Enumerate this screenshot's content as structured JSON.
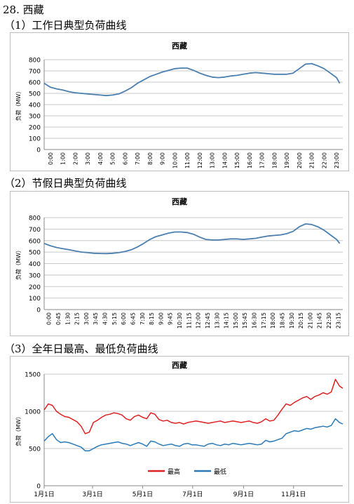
{
  "section_title": "28. 西藏",
  "charts": [
    {
      "heading": "（1）工作日典型负荷曲线",
      "chart_data": {
        "type": "line",
        "title": "西藏",
        "ylabel": "负荷（MW）",
        "xlabel": "",
        "ylim": [
          0,
          800
        ],
        "yticks": [
          0,
          100,
          200,
          300,
          400,
          500,
          600,
          700,
          800
        ],
        "grid": true,
        "categories": [
          "0:00",
          "1:00",
          "2:00",
          "3:00",
          "4:00",
          "5:00",
          "6:00",
          "7:00",
          "8:00",
          "9:00",
          "10:00",
          "11:00",
          "12:00",
          "13:00",
          "14:00",
          "15:00",
          "16:00",
          "17:00",
          "18:00",
          "19:00",
          "20:00",
          "21:00",
          "22:00",
          "23:00"
        ],
        "x": [
          0,
          0.5,
          1,
          1.5,
          2,
          2.5,
          3,
          3.5,
          4,
          4.5,
          5,
          5.5,
          6,
          6.5,
          7,
          7.5,
          8,
          8.5,
          9,
          9.5,
          10,
          10.5,
          11,
          11.5,
          12,
          12.5,
          13,
          13.5,
          14,
          14.5,
          15,
          15.5,
          16,
          16.5,
          17,
          17.5,
          18,
          18.5,
          19,
          19.5,
          20,
          20.5,
          21,
          21.5,
          22,
          22.5,
          23,
          23.5,
          23.75
        ],
        "series": [
          {
            "color": "#4a7fb0",
            "values": [
              590,
              555,
              540,
              530,
              515,
              505,
              500,
              495,
              490,
              485,
              480,
              485,
              495,
              520,
              550,
              590,
              620,
              650,
              670,
              690,
              705,
              720,
              725,
              725,
              705,
              680,
              660,
              645,
              640,
              645,
              655,
              660,
              670,
              680,
              685,
              680,
              675,
              670,
              670,
              670,
              680,
              720,
              760,
              765,
              745,
              720,
              680,
              640,
              590
            ]
          }
        ]
      }
    },
    {
      "heading": "（2）节假日典型负荷曲线",
      "chart_data": {
        "type": "line",
        "title": "西藏",
        "ylabel": "负荷（MW）",
        "xlabel": "",
        "ylim": [
          0,
          800
        ],
        "yticks": [
          0,
          100,
          200,
          300,
          400,
          500,
          600,
          700,
          800
        ],
        "grid": true,
        "categories": [
          "0:00",
          "0:45",
          "1:30",
          "2:15",
          "3:00",
          "3:45",
          "4:30",
          "5:15",
          "6:00",
          "6:45",
          "7:30",
          "8:15",
          "9:00",
          "9:45",
          "10:30",
          "11:15",
          "12:00",
          "12:45",
          "13:30",
          "14:15",
          "15:00",
          "15:45",
          "16:30",
          "17:15",
          "18:00",
          "18:45",
          "19:30",
          "20:15",
          "21:00",
          "21:45",
          "22:30",
          "23:15"
        ],
        "x": [
          0,
          0.5,
          1,
          1.5,
          2,
          2.5,
          3,
          3.5,
          4,
          4.5,
          5,
          5.5,
          6,
          6.5,
          7,
          7.5,
          8,
          8.5,
          9,
          9.5,
          10,
          10.5,
          11,
          11.5,
          12,
          12.5,
          13,
          13.5,
          14,
          14.5,
          15,
          15.5,
          16,
          16.5,
          17,
          17.5,
          18,
          18.5,
          19,
          19.5,
          20,
          20.5,
          21,
          21.5,
          22,
          22.5,
          23,
          23.5,
          23.75
        ],
        "series": [
          {
            "color": "#4a7fb0",
            "values": [
              575,
              555,
              540,
              530,
              520,
              510,
              500,
              495,
              490,
              488,
              487,
              490,
              495,
              505,
              520,
              545,
              575,
              610,
              635,
              650,
              665,
              675,
              675,
              670,
              655,
              630,
              610,
              605,
              605,
              610,
              615,
              615,
              610,
              615,
              620,
              630,
              640,
              645,
              650,
              660,
              680,
              720,
              745,
              740,
              720,
              690,
              650,
              610,
              575
            ]
          }
        ]
      }
    },
    {
      "heading": "（3）全年日最高、最低负荷曲线",
      "chart_data": {
        "type": "line",
        "title": "西藏",
        "ylabel": "负荷（MW）",
        "xlabel": "",
        "ylim": [
          0,
          1500
        ],
        "yticks": [
          0,
          500,
          1000,
          1500
        ],
        "grid": true,
        "legend": "bottom",
        "categories": [
          "1月1日",
          "3月1日",
          "5月1日",
          "7月1日",
          "9月1日",
          "11月1日"
        ],
        "category_days": [
          0,
          59,
          120,
          181,
          243,
          304
        ],
        "x_max_day": 364,
        "x": [
          0,
          5,
          10,
          15,
          20,
          25,
          30,
          35,
          40,
          45,
          50,
          55,
          60,
          65,
          70,
          75,
          80,
          85,
          90,
          95,
          100,
          105,
          110,
          115,
          120,
          125,
          130,
          135,
          140,
          145,
          150,
          155,
          160,
          165,
          170,
          175,
          180,
          185,
          190,
          195,
          200,
          205,
          210,
          215,
          220,
          225,
          230,
          235,
          240,
          245,
          250,
          255,
          260,
          265,
          270,
          275,
          280,
          285,
          290,
          295,
          300,
          305,
          310,
          315,
          320,
          325,
          330,
          335,
          340,
          345,
          350,
          355,
          360,
          364
        ],
        "series": [
          {
            "name": "最高",
            "color": "#e02020",
            "values": [
              1020,
              1100,
              1080,
              1000,
              960,
              930,
              920,
              890,
              860,
              800,
              700,
              720,
              850,
              880,
              920,
              950,
              960,
              980,
              970,
              950,
              900,
              880,
              930,
              950,
              920,
              900,
              980,
              960,
              890,
              870,
              880,
              850,
              840,
              850,
              830,
              850,
              860,
              870,
              860,
              850,
              840,
              850,
              860,
              870,
              850,
              860,
              870,
              860,
              850,
              860,
              870,
              850,
              840,
              860,
              900,
              870,
              880,
              950,
              1030,
              1100,
              1080,
              1120,
              1150,
              1180,
              1200,
              1160,
              1200,
              1220,
              1250,
              1230,
              1260,
              1430,
              1340,
              1310
            ]
          },
          {
            "name": "最低",
            "color": "#2a79b8",
            "values": [
              600,
              660,
              700,
              620,
              580,
              590,
              580,
              560,
              540,
              520,
              470,
              470,
              500,
              530,
              550,
              560,
              570,
              580,
              590,
              570,
              560,
              540,
              560,
              580,
              560,
              530,
              600,
              590,
              560,
              540,
              550,
              560,
              540,
              530,
              560,
              570,
              550,
              550,
              540,
              530,
              560,
              570,
              550,
              540,
              560,
              550,
              570,
              560,
              550,
              560,
              570,
              560,
              550,
              560,
              610,
              590,
              600,
              620,
              640,
              700,
              720,
              740,
              730,
              750,
              770,
              760,
              780,
              790,
              800,
              790,
              810,
              900,
              850,
              830
            ]
          }
        ]
      }
    }
  ]
}
